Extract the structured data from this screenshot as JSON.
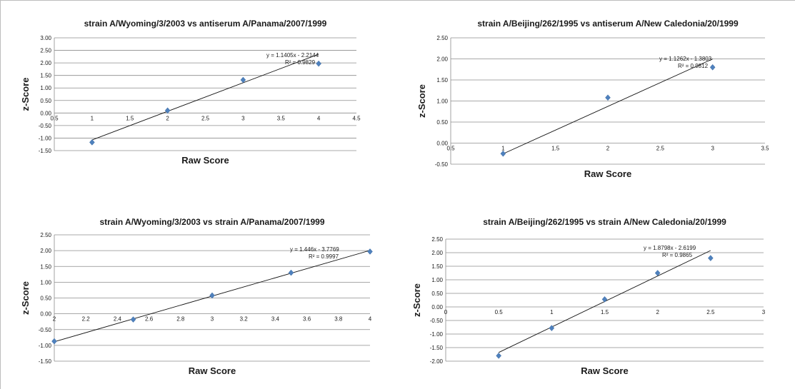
{
  "chart_data": [
    {
      "type": "scatter",
      "title": "strain A/Wyoming/3/2003 vs antiserum A/Panama/2007/1999",
      "xlabel": "Raw Score",
      "ylabel": "z-Score",
      "xlim": [
        0.5,
        4.5
      ],
      "ylim": [
        -1.5,
        3.0
      ],
      "x_ticks": [
        "0.5",
        "1",
        "1.5",
        "2",
        "2.5",
        "3",
        "3.5",
        "4",
        "4.5"
      ],
      "y_ticks": [
        "3.00",
        "2.50",
        "2.00",
        "1.50",
        "1.00",
        "0.50",
        "0.00",
        "-0.50",
        "-1.00",
        "-1.50"
      ],
      "points": [
        [
          1,
          -1.17
        ],
        [
          2,
          0.1
        ],
        [
          3,
          1.32
        ],
        [
          4,
          1.97
        ]
      ],
      "trendline": {
        "slope": 1.1405,
        "intercept": -2.2144,
        "x_range": [
          1,
          4
        ]
      },
      "equation": "y = 1.1405x - 2.2144",
      "r_squared": "R² = 0.9829",
      "grid": true,
      "marker_color": "#4f81bd"
    },
    {
      "type": "scatter",
      "title": "strain A/Beijing/262/1995 vs antiserum A/New Caledonia/20/1999",
      "xlabel": "Raw Score",
      "ylabel": "z-Score",
      "xlim": [
        0.5,
        3.5
      ],
      "ylim": [
        -0.5,
        2.5
      ],
      "x_ticks": [
        "0.5",
        "1",
        "1.5",
        "2",
        "2.5",
        "3",
        "3.5"
      ],
      "y_ticks": [
        "2.50",
        "2.00",
        "1.50",
        "1.00",
        "0.50",
        "0.00",
        "-0.50"
      ],
      "points": [
        [
          1,
          -0.25
        ],
        [
          2,
          1.08
        ],
        [
          3,
          1.8
        ]
      ],
      "trendline": {
        "slope": 1.1262,
        "intercept": -1.3803,
        "x_range": [
          1,
          3
        ]
      },
      "equation": "y = 1.1262x - 1.3803",
      "r_squared": "R² = 0.9812",
      "grid": true,
      "marker_color": "#4f81bd"
    },
    {
      "type": "scatter",
      "title": "strain A/Wyoming/3/2003 vs strain A/Panama/2007/1999",
      "xlabel": "Raw Score",
      "ylabel": "z-Score",
      "xlim": [
        2,
        4
      ],
      "ylim": [
        -1.5,
        2.5
      ],
      "x_ticks": [
        "2",
        "2.2",
        "2.4",
        "2.6",
        "2.8",
        "3",
        "3.2",
        "3.4",
        "3.6",
        "3.8",
        "4"
      ],
      "y_ticks": [
        "2.50",
        "2.00",
        "1.50",
        "1.00",
        "0.50",
        "0.00",
        "-0.50",
        "-1.00",
        "-1.50"
      ],
      "points": [
        [
          2,
          -0.87
        ],
        [
          2.5,
          -0.18
        ],
        [
          3,
          0.58
        ],
        [
          3.5,
          1.3
        ],
        [
          4,
          1.97
        ]
      ],
      "trendline": {
        "slope": 1.446,
        "intercept": -3.7769,
        "x_range": [
          2,
          4
        ]
      },
      "equation": "y = 1.446x - 3.7769",
      "r_squared": "R² = 0.9997",
      "grid": true,
      "marker_color": "#4f81bd"
    },
    {
      "type": "scatter",
      "title": "strain A/Beijing/262/1995 vs strain A/New Caledonia/20/1999",
      "xlabel": "Raw Score",
      "ylabel": "z-Score",
      "xlim": [
        0,
        3
      ],
      "ylim": [
        -2.0,
        2.5
      ],
      "x_ticks": [
        "0",
        "0.5",
        "1",
        "1.5",
        "2",
        "2.5",
        "3"
      ],
      "y_ticks": [
        "2.50",
        "2.00",
        "1.50",
        "1.00",
        "0.50",
        "0.00",
        "-0.50",
        "-1.00",
        "-1.50",
        "-2.00"
      ],
      "points": [
        [
          0.5,
          -1.8
        ],
        [
          1,
          -0.78
        ],
        [
          1.5,
          0.28
        ],
        [
          2,
          1.25
        ],
        [
          2.5,
          1.8
        ]
      ],
      "trendline": {
        "slope": 1.8798,
        "intercept": -2.6199,
        "x_range": [
          0.5,
          2.5
        ]
      },
      "equation": "y = 1.8798x - 2.6199",
      "r_squared": "R² = 0.9865",
      "grid": true,
      "marker_color": "#4f81bd"
    }
  ]
}
